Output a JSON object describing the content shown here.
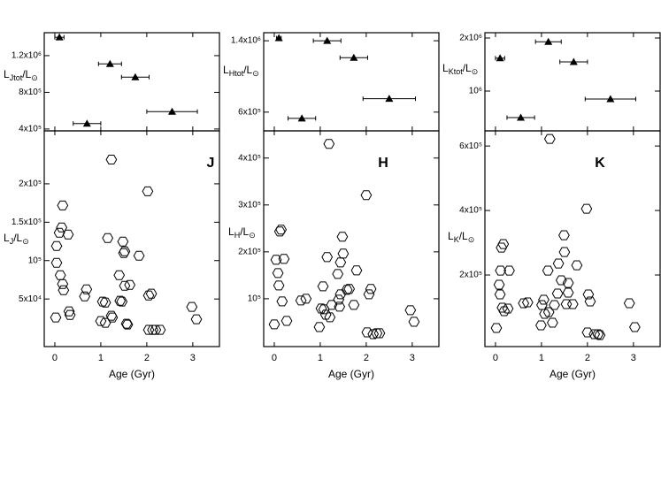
{
  "chart_data": [
    {
      "type": "scatter",
      "marker": "triangle",
      "ylabel": [
        "L",
        "Jtot",
        "/L",
        "⊙"
      ],
      "x": [
        0.1,
        1.2,
        1.75,
        2.55,
        0.7
      ],
      "values": [
        1400000,
        1110000,
        966000,
        590000,
        460000
      ],
      "xerr": [
        0.1,
        0.25,
        0.3,
        0.55,
        0.3
      ],
      "xlim": [
        -0.23,
        3.58
      ],
      "xticks": [
        0,
        1,
        2,
        3
      ],
      "show_xtick_labels": false,
      "ylim": [
        380000,
        1450000
      ],
      "yticks": [
        {
          "value": 400000,
          "label": "4x10⁵"
        },
        {
          "value": 800000,
          "label": "8x10⁵"
        },
        {
          "value": 1200000,
          "label": "1.2x10⁶"
        }
      ],
      "color": "#000000"
    },
    {
      "type": "scatter",
      "marker": "hexagon",
      "ylabel": [
        "L",
        "J",
        "/L",
        "⊙"
      ],
      "xlabel": "Age (Gyr)",
      "annotation": "J",
      "x": [
        0.02,
        0.04,
        0.04,
        0.1,
        0.12,
        0.17,
        0.15,
        0.17,
        0.19,
        0.29,
        0.31,
        0.33,
        0.65,
        0.69,
        1.0,
        1.04,
        1.1,
        1.1,
        1.15,
        1.23,
        1.23,
        1.25,
        1.4,
        1.42,
        1.46,
        1.48,
        1.5,
        1.52,
        1.52,
        1.56,
        1.58,
        1.63,
        1.83,
        2.02,
        2.04,
        2.04,
        2.1,
        2.13,
        2.19,
        2.29,
        2.98,
        3.08
      ],
      "values": [
        25900,
        97100,
        119000,
        136200,
        81000,
        171800,
        143100,
        69500,
        61500,
        133900,
        33900,
        29300,
        53400,
        62600,
        21300,
        46600,
        45400,
        19000,
        129300,
        231600,
        28200,
        25900,
        81000,
        47700,
        46600,
        124700,
        109800,
        112100,
        67200,
        17800,
        16700,
        68400,
        106300,
        190200,
        9800,
        54600,
        56900,
        9800,
        9800,
        9800,
        39700,
        23600
      ],
      "xlim": [
        -0.23,
        3.58
      ],
      "xticks": [
        0,
        1,
        2,
        3
      ],
      "show_xtick_labels": true,
      "ylim": [
        -12000,
        269000
      ],
      "yticks": [
        {
          "value": 50000,
          "label": "5x10⁴"
        },
        {
          "value": 100000,
          "label": "10⁵"
        },
        {
          "value": 150000,
          "label": "1.5x10⁵"
        },
        {
          "value": 200000,
          "label": "2x10⁵"
        }
      ],
      "color": "#000000"
    },
    {
      "type": "scatter",
      "marker": "triangle",
      "ylabel": [
        "L",
        "Htot",
        "/L",
        "⊙"
      ],
      "x": [
        0.1,
        1.15,
        1.73,
        2.5,
        0.6
      ],
      "values": [
        1430000,
        1400000,
        1210000,
        750000,
        530000
      ],
      "xerr": [
        0.05,
        0.3,
        0.3,
        0.57,
        0.3
      ],
      "xlim": [
        -0.23,
        3.58
      ],
      "xticks": [
        0,
        1,
        2,
        3
      ],
      "show_xtick_labels": false,
      "ylim": [
        390000,
        1490000
      ],
      "yticks": [
        {
          "value": 600000,
          "label": "6x10⁵"
        },
        {
          "value": 1400000,
          "label": "1.4x10⁶"
        }
      ],
      "color": "#000000"
    },
    {
      "type": "scatter",
      "marker": "hexagon",
      "ylabel": [
        "L",
        "H",
        "/L",
        "⊙"
      ],
      "xlabel": "Age (Gyr)",
      "annotation": "H",
      "x": [
        0.0,
        0.04,
        0.08,
        0.1,
        0.12,
        0.15,
        0.17,
        0.21,
        0.27,
        0.58,
        0.69,
        0.98,
        1.02,
        1.06,
        1.08,
        1.12,
        1.15,
        1.19,
        1.21,
        1.25,
        1.38,
        1.4,
        1.42,
        1.44,
        1.44,
        1.48,
        1.5,
        1.58,
        1.63,
        1.73,
        1.79,
        2.0,
        2.02,
        2.06,
        2.1,
        2.15,
        2.23,
        2.29,
        2.96,
        3.04
      ],
      "values": [
        45300,
        183000,
        154700,
        128300,
        243400,
        247200,
        94300,
        184900,
        52800,
        96200,
        100000,
        39600,
        79200,
        126400,
        77400,
        66000,
        188700,
        430200,
        60400,
        86800,
        152800,
        98100,
        83000,
        109400,
        177400,
        232100,
        196200,
        118900,
        120800,
        86800,
        160400,
        320800,
        28300,
        109400,
        120800,
        24500,
        26400,
        26400,
        75500,
        50900
      ],
      "xlim": [
        -0.23,
        3.58
      ],
      "xticks": [
        0,
        1,
        2,
        3
      ],
      "show_xtick_labels": true,
      "ylim": [
        -2000,
        458000
      ],
      "yticks": [
        {
          "value": 100000,
          "label": "10⁵"
        },
        {
          "value": 200000,
          "label": "2x10⁵"
        },
        {
          "value": 300000,
          "label": "3x10⁵"
        },
        {
          "value": 400000,
          "label": "4x10⁵"
        }
      ],
      "color": "#000000"
    },
    {
      "type": "scatter",
      "marker": "triangle",
      "ylabel": [
        "L",
        "Ktot",
        "/L",
        "⊙"
      ],
      "x": [
        0.1,
        1.15,
        1.7,
        2.5,
        0.55
      ],
      "values": [
        1620000,
        1930000,
        1550000,
        850000,
        500000
      ],
      "xerr": [
        0.1,
        0.28,
        0.3,
        0.55,
        0.3
      ],
      "xlim": [
        -0.23,
        3.58
      ],
      "xticks": [
        0,
        1,
        2,
        3
      ],
      "show_xtick_labels": false,
      "ylim": [
        250000,
        2100000
      ],
      "yticks": [
        {
          "value": 1000000,
          "label": "10⁶"
        },
        {
          "value": 2000000,
          "label": "2x10⁶"
        }
      ],
      "color": "#000000"
    },
    {
      "type": "scatter",
      "marker": "hexagon",
      "ylabel": [
        "L",
        "K",
        "/L",
        "⊙"
      ],
      "xlabel": "Age (Gyr)",
      "annotation": "K",
      "x": [
        0.02,
        0.08,
        0.1,
        0.11,
        0.13,
        0.17,
        0.15,
        0.19,
        0.27,
        0.3,
        0.61,
        0.7,
        0.99,
        1.01,
        1.05,
        1.07,
        1.14,
        1.16,
        1.18,
        1.24,
        1.28,
        1.35,
        1.37,
        1.43,
        1.49,
        1.5,
        1.54,
        1.58,
        1.58,
        1.68,
        1.77,
        1.98,
        2.0,
        2.02,
        2.06,
        2.15,
        2.23,
        2.27,
        2.91,
        3.03
      ],
      "values": [
        35600,
        169900,
        139700,
        213700,
        284900,
        295900,
        98600,
        87700,
        95900,
        213700,
        112300,
        115100,
        43800,
        106800,
        123300,
        79400,
        213700,
        84900,
        622000,
        52000,
        106800,
        142500,
        235600,
        183600,
        323300,
        271200,
        109600,
        145200,
        175300,
        109600,
        230100,
        405500,
        21900,
        139700,
        117800,
        16400,
        16400,
        13700,
        112300,
        38300
      ],
      "xlim": [
        -0.23,
        3.58
      ],
      "xticks": [
        0,
        1,
        2,
        3
      ],
      "show_xtick_labels": true,
      "ylim": [
        -22000,
        647000
      ],
      "yticks": [
        {
          "value": 200000,
          "label": "2x10⁵"
        },
        {
          "value": 400000,
          "label": "4x10⁵"
        },
        {
          "value": 600000,
          "label": "6x10⁵"
        }
      ],
      "color": "#000000"
    }
  ]
}
